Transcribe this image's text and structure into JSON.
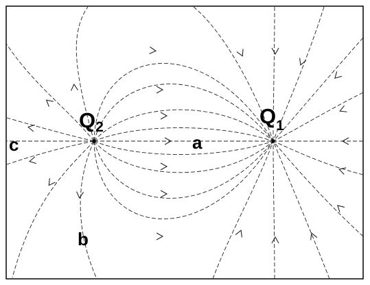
{
  "diagram": {
    "type": "electric field lines",
    "charges": [
      {
        "id": "Q1",
        "name": "Q",
        "subscript": "1",
        "direction": "inward"
      },
      {
        "id": "Q2",
        "name": "Q",
        "subscript": "2",
        "direction": "outward"
      }
    ],
    "points": [
      {
        "id": "a",
        "label": "a"
      },
      {
        "id": "b",
        "label": "b"
      },
      {
        "id": "c",
        "label": "c"
      }
    ],
    "colors": {
      "line": "#222222",
      "text": "#000000",
      "background": "#ffffff"
    }
  }
}
